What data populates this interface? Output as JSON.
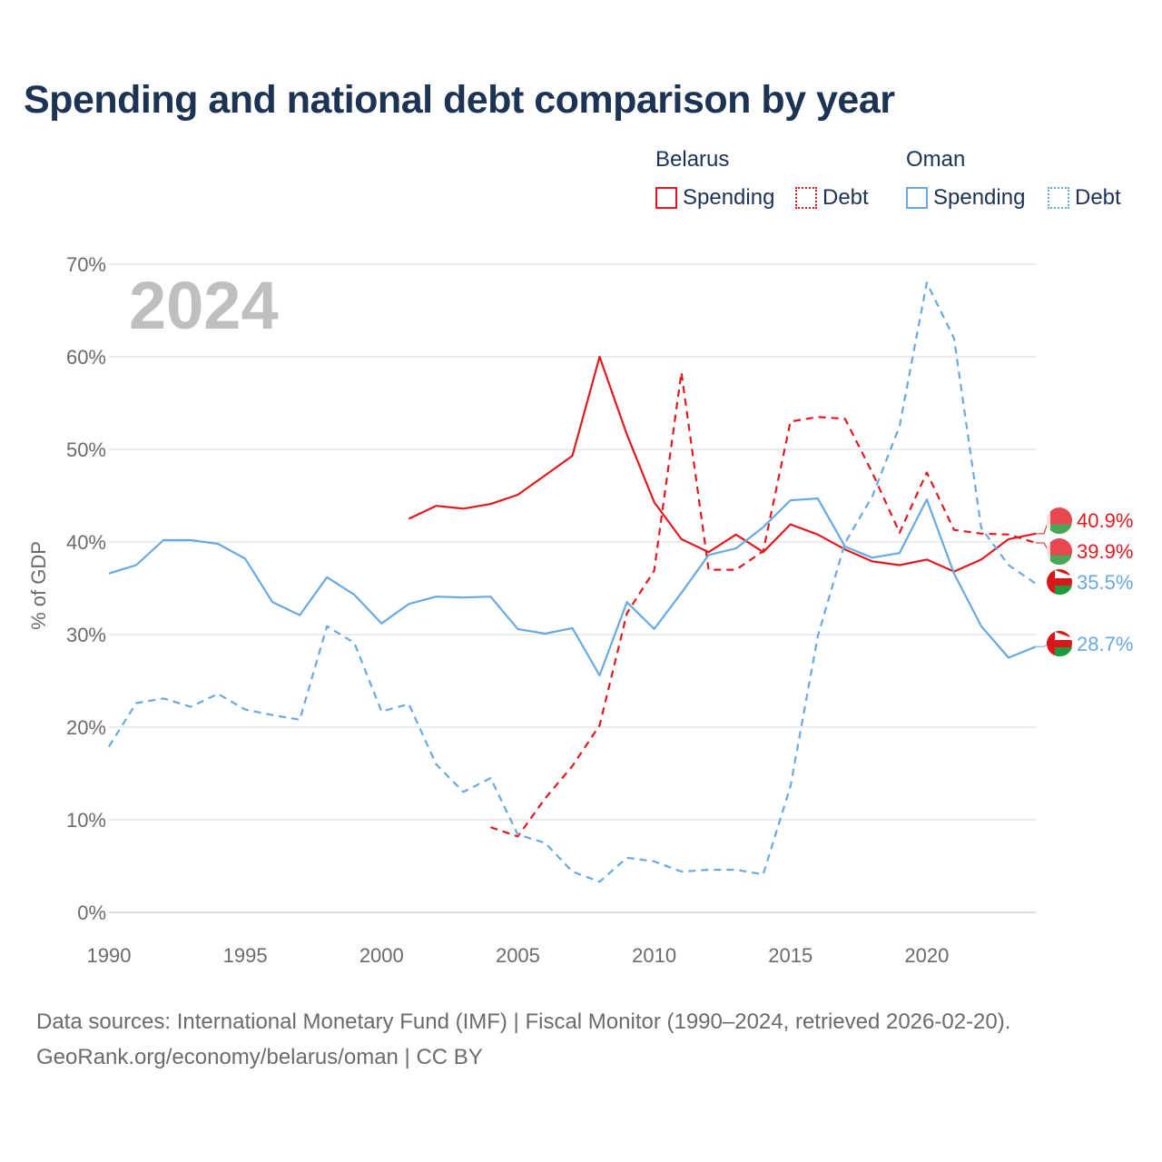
{
  "title": "Spending and national debt comparison by year",
  "legend": {
    "groups": [
      {
        "name": "Belarus",
        "spending": "Spending",
        "debt": "Debt"
      },
      {
        "name": "Oman",
        "spending": "Spending",
        "debt": "Debt"
      }
    ]
  },
  "footer": {
    "line1": "Data sources: International Monetary Fund (IMF) | Fiscal Monitor (1990–2024, retrieved 2026-02-20).",
    "line2": "GeoRank.org/economy/belarus/oman | CC BY"
  },
  "colors": {
    "belarus": "#e0191e",
    "oman": "#6aa9e0",
    "grid": "#e6e6e6",
    "year_watermark": "#bfbfbf"
  },
  "chart_data": {
    "type": "line",
    "title": "Spending and national debt comparison by year",
    "year_label": "2024",
    "ylabel": "% of GDP",
    "xlabel": "",
    "xlim": [
      1990,
      2024
    ],
    "ylim": [
      0,
      70
    ],
    "x_ticks": [
      "1990",
      "1995",
      "2000",
      "2005",
      "2010",
      "2015",
      "2020"
    ],
    "y_ticks": [
      "0%",
      "10%",
      "20%",
      "30%",
      "40%",
      "50%",
      "60%",
      "70%"
    ],
    "series": [
      {
        "name": "Belarus Spending",
        "country": "belarus",
        "style": "solid",
        "end_label": "40.9%",
        "x": [
          2001,
          2002,
          2003,
          2004,
          2005,
          2006,
          2007,
          2008,
          2009,
          2010,
          2011,
          2012,
          2013,
          2014,
          2015,
          2016,
          2017,
          2018,
          2019,
          2020,
          2021,
          2022,
          2023,
          2024
        ],
        "values": [
          42.5,
          43.9,
          43.6,
          44.1,
          45.1,
          47.2,
          49.3,
          60.0,
          51.6,
          44.3,
          40.3,
          38.9,
          40.8,
          38.9,
          41.9,
          40.8,
          39.2,
          37.9,
          37.5,
          38.1,
          36.8,
          38.1,
          40.3,
          40.9
        ]
      },
      {
        "name": "Belarus Debt",
        "country": "belarus",
        "style": "dashed",
        "end_label": "39.9%",
        "x": [
          2004,
          2005,
          2006,
          2007,
          2008,
          2009,
          2010,
          2011,
          2012,
          2013,
          2014,
          2015,
          2016,
          2017,
          2018,
          2019,
          2020,
          2021,
          2022,
          2023,
          2024
        ],
        "values": [
          9.2,
          8.2,
          12.3,
          15.8,
          20.2,
          32.3,
          36.9,
          58.3,
          37.0,
          37.0,
          39.0,
          53.0,
          53.5,
          53.3,
          47.5,
          41.0,
          47.5,
          41.3,
          40.9,
          40.8,
          39.9
        ]
      },
      {
        "name": "Oman Spending",
        "country": "oman",
        "style": "solid",
        "end_label": "28.7%",
        "x": [
          1990,
          1991,
          1992,
          1993,
          1994,
          1995,
          1996,
          1997,
          1998,
          1999,
          2000,
          2001,
          2002,
          2003,
          2004,
          2005,
          2006,
          2007,
          2008,
          2009,
          2010,
          2011,
          2012,
          2013,
          2014,
          2015,
          2016,
          2017,
          2018,
          2019,
          2020,
          2021,
          2022,
          2023,
          2024
        ],
        "values": [
          36.6,
          37.5,
          40.2,
          40.2,
          39.8,
          38.2,
          33.5,
          32.1,
          36.2,
          34.3,
          31.2,
          33.3,
          34.1,
          34.0,
          34.1,
          30.6,
          30.1,
          30.7,
          25.6,
          33.5,
          30.6,
          34.5,
          38.6,
          39.3,
          41.6,
          44.5,
          44.7,
          39.5,
          38.3,
          38.8,
          44.6,
          36.6,
          30.9,
          27.5,
          28.7
        ]
      },
      {
        "name": "Oman Debt",
        "country": "oman",
        "style": "dashed",
        "end_label": "35.5%",
        "x": [
          1990,
          1991,
          1992,
          1993,
          1994,
          1995,
          1996,
          1997,
          1998,
          1999,
          2000,
          2001,
          2002,
          2003,
          2004,
          2005,
          2006,
          2007,
          2008,
          2009,
          2010,
          2011,
          2012,
          2013,
          2014,
          2015,
          2016,
          2017,
          2018,
          2019,
          2020,
          2021,
          2022,
          2023,
          2024
        ],
        "values": [
          17.9,
          22.6,
          23.1,
          22.2,
          23.6,
          21.9,
          21.3,
          20.8,
          30.9,
          29.1,
          21.7,
          22.5,
          16.0,
          13.0,
          14.5,
          8.4,
          7.5,
          4.4,
          3.3,
          5.9,
          5.5,
          4.4,
          4.6,
          4.6,
          4.1,
          13.6,
          29.8,
          39.9,
          44.9,
          52.5,
          68.0,
          62.0,
          41.5,
          37.5,
          35.5
        ]
      }
    ]
  }
}
